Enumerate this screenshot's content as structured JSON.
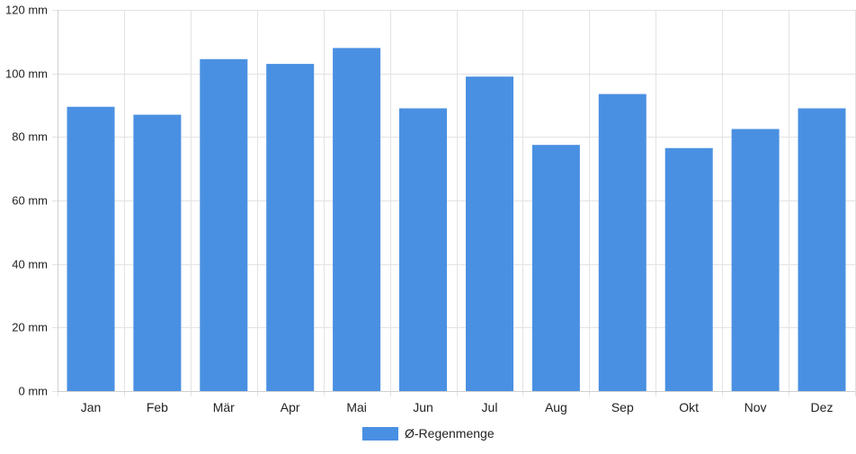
{
  "chart_data": {
    "type": "bar",
    "categories": [
      "Jan",
      "Feb",
      "Mär",
      "Apr",
      "Mai",
      "Jun",
      "Jul",
      "Aug",
      "Sep",
      "Okt",
      "Nov",
      "Dez"
    ],
    "series": [
      {
        "name": "Ø-Regenmenge",
        "color": "#4a90e2",
        "values": [
          89.5,
          87,
          104.5,
          103,
          108,
          89,
          99,
          77.5,
          93.5,
          76.5,
          82.5,
          89
        ]
      }
    ],
    "ylim": [
      0,
      120
    ],
    "yticks": [
      0,
      20,
      40,
      60,
      80,
      100,
      120
    ],
    "y_unit": "mm",
    "grid": true,
    "legend_position": "bottom-center"
  }
}
